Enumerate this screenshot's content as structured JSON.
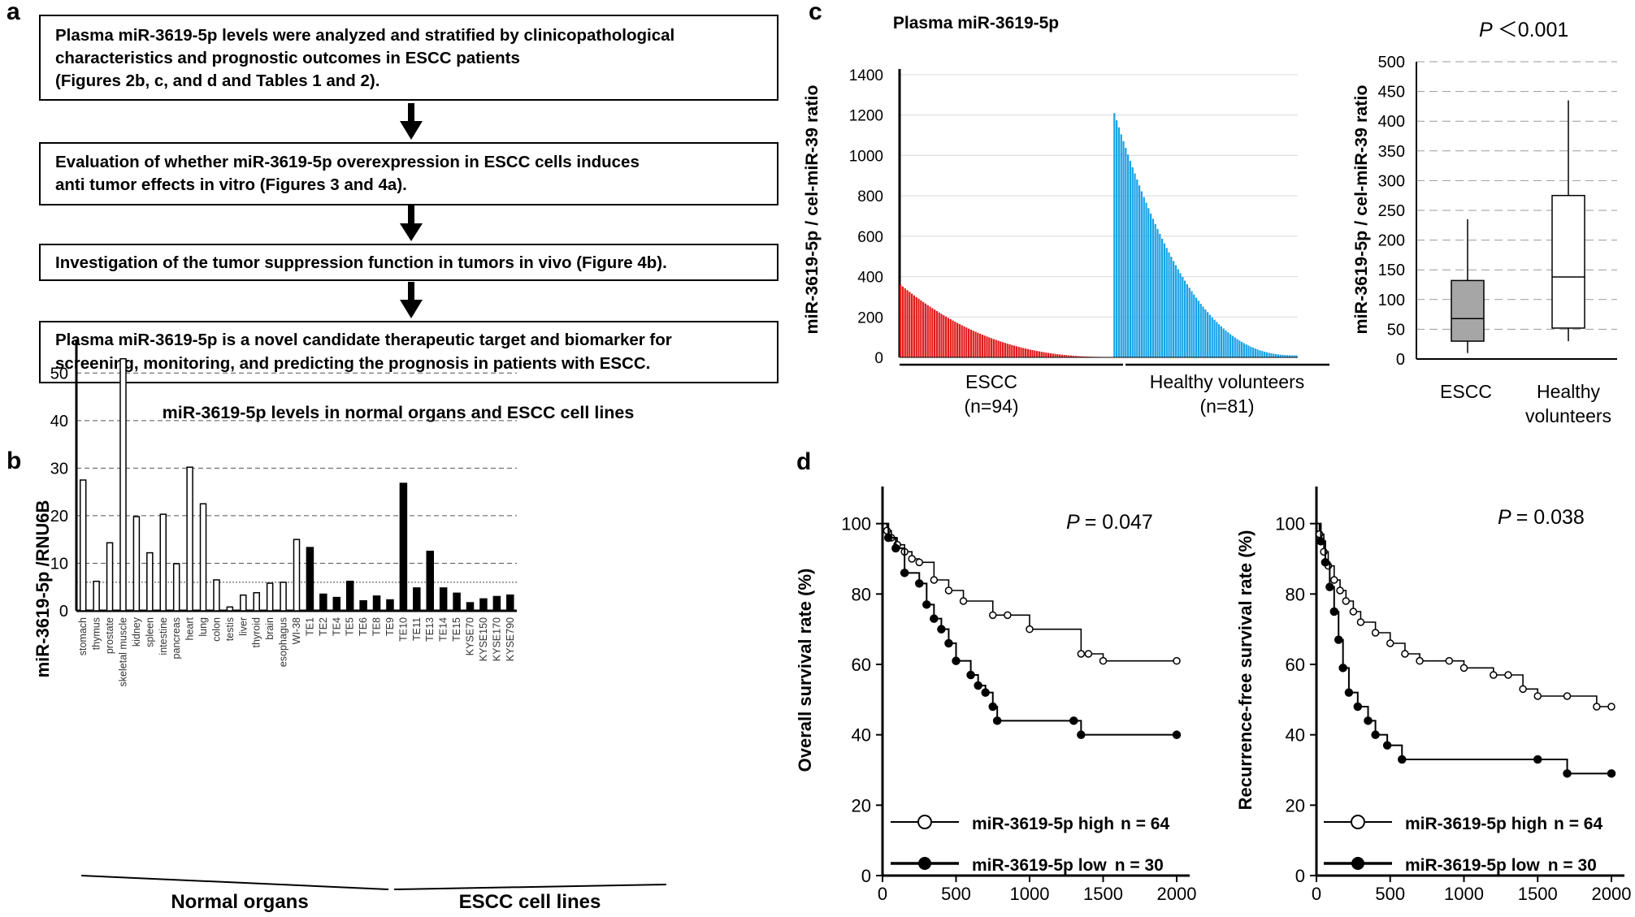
{
  "panel_letters": {
    "a": "a",
    "b": "b",
    "c": "c",
    "d": "d"
  },
  "flowchart": {
    "boxes": [
      {
        "lines": [
          "Plasma miR-3619-5p levels were analyzed and stratified by clinicopathological",
          "characteristics and prognostic outcomes in ESCC patients",
          "(Figures 2b, c, and d and Tables 1 and 2)."
        ]
      },
      {
        "lines": [
          "Evaluation of whether miR-3619-5p overexpression in ESCC cells induces",
          "anti tumor effects in vitro (Figures 3 and 4a)."
        ]
      },
      {
        "lines": [
          "Investigation of the tumor suppression function in tumors in vivo (Figure 4b)."
        ]
      },
      {
        "lines": [
          "Plasma miR-3619-5p is a novel candidate therapeutic target and biomarker for",
          "screening, monitoring, and predicting the prognosis in patients with ESCC."
        ]
      }
    ]
  },
  "chart_data": [
    {
      "id": "b",
      "type": "bar",
      "title": "miR-3619-5p levels in normal organs and ESCC cell lines",
      "ylabel": "miR-3619-5p /RNU6B",
      "ylim": [
        0,
        55
      ],
      "yticks": [
        0,
        10,
        20,
        30,
        40,
        50
      ],
      "reference_line": 6,
      "groups": [
        {
          "label": "Normal organs",
          "fill": "#ffffff",
          "categories": [
            "stomach",
            "thymus",
            "prostate",
            "skeletal muscle",
            "kidney",
            "spleen",
            "intestine",
            "pancreas",
            "heart",
            "lung",
            "colon",
            "testis",
            "liver",
            "thyroid",
            "brain",
            "esophagus",
            "WI-38"
          ],
          "values": [
            27.5,
            6.2,
            14.3,
            53,
            19.8,
            12.2,
            20.3,
            9.9,
            30.2,
            22.5,
            6.5,
            0.8,
            3.3,
            3.8,
            5.8,
            6,
            15
          ]
        },
        {
          "label": "ESCC cell lines",
          "fill": "#000000",
          "categories": [
            "TE1",
            "TE2",
            "TE4",
            "TE5",
            "TE6",
            "TE8",
            "TE9",
            "TE10",
            "TE11",
            "TE13",
            "TE14",
            "TE15",
            "KYSE70",
            "KYSE150",
            "KYSE170",
            "KYSE790"
          ],
          "values": [
            13.3,
            3.5,
            2.8,
            6.2,
            2.1,
            3.1,
            2.3,
            26.8,
            4.8,
            12.5,
            4.8,
            3.7,
            1.7,
            2.5,
            3,
            3.3
          ]
        }
      ]
    },
    {
      "id": "c-waterfall",
      "type": "bar",
      "title": "Plasma miR-3619-5p",
      "ylabel": "miR-3619-5p / cel-miR-39 ratio",
      "ylim": [
        0,
        1400
      ],
      "yticks": [
        0,
        200,
        400,
        600,
        800,
        1000,
        1200,
        1400
      ],
      "series": [
        {
          "name": "ESCC",
          "n_label": "(n=94)",
          "count": 94,
          "color": "#e01c1c",
          "max": 360,
          "min": 2
        },
        {
          "name": "Healthy volunteers",
          "n_label": "(n=81)",
          "count": 81,
          "color": "#1aa3e6",
          "max": 1210,
          "min": 10
        }
      ]
    },
    {
      "id": "c-box",
      "type": "box",
      "title": "P < 0.001",
      "p_label": "P",
      "p_text": "＜0.001",
      "ylabel": "miR-3619-5p / cel-miR-39 ratio",
      "ylim": [
        0,
        500
      ],
      "yticks": [
        0,
        50,
        100,
        150,
        200,
        250,
        300,
        350,
        400,
        450,
        500
      ],
      "boxes": [
        {
          "label": "ESCC",
          "whisker_low": 10,
          "q1": 30,
          "median": 68,
          "q3": 132,
          "whisker_high": 235,
          "fill": "#a6a6a6"
        },
        {
          "label": [
            "Healthy",
            "volunteers"
          ],
          "whisker_low": 30,
          "q1": 52,
          "median": 138,
          "q3": 275,
          "whisker_high": 435,
          "fill": "#ffffff"
        }
      ]
    },
    {
      "id": "d-os",
      "type": "line",
      "ylabel": "Overall survival rate (%)",
      "p_label": "P",
      "p_value": "= 0.047",
      "xlim": [
        0,
        2000
      ],
      "ylim": [
        0,
        105
      ],
      "xticks": [
        0,
        500,
        1000,
        1500,
        2000
      ],
      "yticks": [
        0,
        20,
        40,
        60,
        80,
        100
      ],
      "series": [
        {
          "name": "miR-3619-5p high",
          "n_text": "n = 64",
          "marker": "open",
          "x": [
            0,
            30,
            60,
            100,
            150,
            200,
            250,
            350,
            450,
            550,
            750,
            850,
            1000,
            1350,
            1400,
            1500,
            2000
          ],
          "y": [
            100,
            98,
            96,
            94,
            92,
            90,
            89,
            84,
            81,
            78,
            74,
            74,
            70,
            63,
            63,
            61,
            61
          ]
        },
        {
          "name": "miR-3619-5p low",
          "n_text": "n = 30",
          "marker": "filled",
          "x": [
            0,
            40,
            90,
            150,
            250,
            300,
            350,
            400,
            450,
            500,
            600,
            650,
            700,
            750,
            780,
            1300,
            1350,
            2000
          ],
          "y": [
            100,
            96,
            93,
            86,
            83,
            77,
            73,
            70,
            66,
            61,
            57,
            54,
            52,
            48,
            44,
            44,
            40,
            40
          ]
        }
      ]
    },
    {
      "id": "d-rfs",
      "type": "line",
      "ylabel": "Recurrence-free survival rate (%)",
      "p_label": "P",
      "p_value": "= 0.038",
      "xlim": [
        0,
        2000
      ],
      "ylim": [
        0,
        105
      ],
      "xticks": [
        0,
        500,
        1000,
        1500,
        2000
      ],
      "yticks": [
        0,
        20,
        40,
        60,
        80,
        100
      ],
      "series": [
        {
          "name": "miR-3619-5p high",
          "n_text": "n = 64",
          "marker": "open",
          "x": [
            0,
            20,
            50,
            80,
            120,
            160,
            200,
            250,
            300,
            400,
            500,
            600,
            700,
            900,
            1000,
            1200,
            1300,
            1400,
            1500,
            1700,
            1900,
            2000
          ],
          "y": [
            100,
            97,
            92,
            88,
            84,
            81,
            78,
            75,
            72,
            69,
            66,
            63,
            61,
            61,
            59,
            57,
            57,
            53,
            51,
            51,
            48,
            48
          ]
        },
        {
          "name": "miR-3619-5p low",
          "n_text": "n = 30",
          "marker": "filled",
          "x": [
            0,
            30,
            60,
            90,
            120,
            150,
            180,
            220,
            280,
            350,
            400,
            480,
            580,
            1500,
            1700,
            2000
          ],
          "y": [
            100,
            95,
            89,
            82,
            75,
            67,
            59,
            52,
            48,
            44,
            40,
            37,
            33,
            33,
            29,
            29
          ]
        }
      ]
    }
  ],
  "panel_b_group_labels": [
    "Normal organs",
    "ESCC cell lines"
  ],
  "panel_c_group_labels": {
    "escc": "ESCC",
    "escc_n": "(n=94)",
    "healthy": "Healthy volunteers",
    "healthy_n": "(n=81)"
  }
}
